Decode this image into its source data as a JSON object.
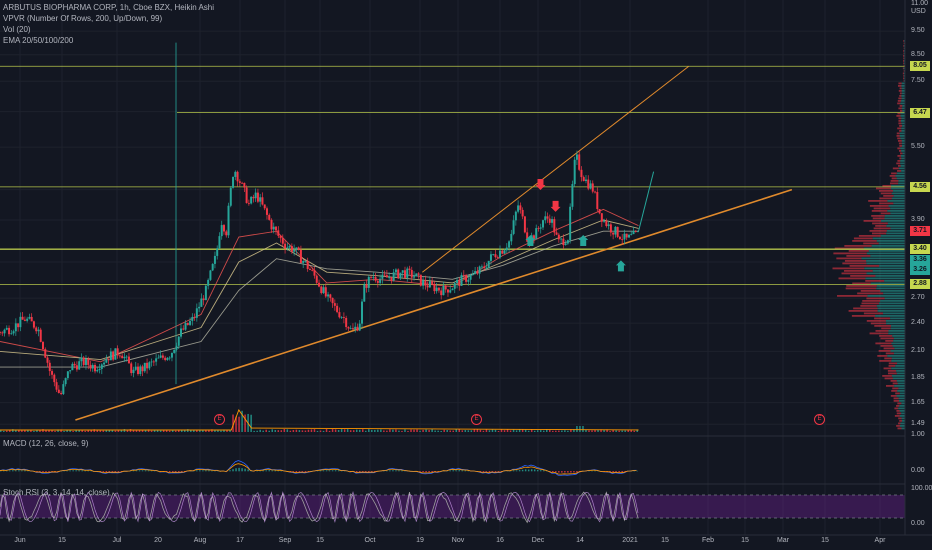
{
  "legend": {
    "title": "ARBUTUS BIOPHARMA CORP, 1h, Cboe BZX, Heikin Ashi",
    "vpvr": "VPVR (Number Of Rows, 200, Up/Down, 99)",
    "vol": "Vol (20)",
    "ema": "EMA 20/50/100/200",
    "macd": "MACD (12, 26, close, 9)",
    "stoch": "Stoch RSI (3, 3, 14, 14, close)"
  },
  "price_axis": {
    "top_label": "11.00",
    "currency": "USD",
    "ticks": [
      "9.50",
      "8.50",
      "7.50",
      "6.50",
      "5.50",
      "4.50",
      "3.90",
      "3.20",
      "2.70",
      "2.40",
      "2.10",
      "1.85",
      "1.65",
      "1.49"
    ],
    "macd_ticks": [
      "1.00",
      "0.00"
    ],
    "stoch_ticks": [
      "100.00",
      "0.00"
    ]
  },
  "price_boxes": [
    {
      "text": "8.05",
      "color": "#c6d74f"
    },
    {
      "text": "6.47",
      "color": "#c6d74f"
    },
    {
      "text": "4.56",
      "color": "#c6d74f"
    },
    {
      "text": "3.71",
      "color": "#f23645"
    },
    {
      "text": "3.40",
      "color": "#c6d74f"
    },
    {
      "text": "3.36",
      "color": "#26a69a"
    },
    {
      "text": "3.26",
      "color": "#26a69a"
    },
    {
      "text": "2.88",
      "color": "#c6d74f"
    }
  ],
  "time_axis": [
    "Jun",
    "15",
    "Jul",
    "20",
    "Aug",
    "17",
    "Sep",
    "15",
    "Oct",
    "19",
    "Nov",
    "16",
    "Dec",
    "14",
    "2021",
    "15",
    "Feb",
    "15",
    "Mar",
    "15",
    "Apr"
  ],
  "earnings_marker": "E",
  "colors": {
    "up": "#26a69a",
    "down": "#f23645",
    "level": "#c6d74f",
    "trend": "#e08a2c",
    "stoch_band": "#7b1fa2",
    "macd_signal": "#ff9800"
  },
  "chart_data": {
    "type": "line",
    "title": "ARBUTUS BIOPHARMA CORP, 1h, Cboe BZX, Heikin Ashi",
    "price": [
      [
        0,
        2.3
      ],
      [
        5,
        2.35
      ],
      [
        10,
        2.45
      ],
      [
        15,
        2.35
      ],
      [
        20,
        1.9
      ],
      [
        24,
        1.7
      ],
      [
        28,
        1.95
      ],
      [
        33,
        2.0
      ],
      [
        38,
        1.95
      ],
      [
        43,
        2.05
      ],
      [
        48,
        2.1
      ],
      [
        53,
        1.9
      ],
      [
        58,
        1.95
      ],
      [
        63,
        2.02
      ],
      [
        68,
        2.08
      ],
      [
        72,
        2.3
      ],
      [
        77,
        2.45
      ],
      [
        82,
        2.8
      ],
      [
        86,
        3.3
      ],
      [
        88,
        3.9
      ],
      [
        90,
        3.7
      ],
      [
        93,
        5.0
      ],
      [
        96,
        4.6
      ],
      [
        99,
        4.2
      ],
      [
        102,
        4.4
      ],
      [
        105,
        4.1
      ],
      [
        108,
        3.8
      ],
      [
        111,
        3.6
      ],
      [
        114,
        3.45
      ],
      [
        117,
        3.4
      ],
      [
        120,
        3.25
      ],
      [
        125,
        3.0
      ],
      [
        130,
        2.7
      ],
      [
        134,
        2.55
      ],
      [
        137,
        2.45
      ],
      [
        140,
        2.3
      ],
      [
        143,
        2.4
      ],
      [
        145,
        2.85
      ],
      [
        148,
        3.0
      ],
      [
        152,
        2.95
      ],
      [
        156,
        3.0
      ],
      [
        160,
        3.05
      ],
      [
        165,
        3.0
      ],
      [
        168,
        2.9
      ],
      [
        172,
        2.85
      ],
      [
        176,
        2.8
      ],
      [
        180,
        2.85
      ],
      [
        184,
        2.95
      ],
      [
        188,
        3.0
      ],
      [
        192,
        3.1
      ],
      [
        196,
        3.3
      ],
      [
        200,
        3.4
      ],
      [
        203,
        3.55
      ],
      [
        206,
        4.2
      ],
      [
        208,
        3.9
      ],
      [
        210,
        3.55
      ],
      [
        213,
        3.65
      ],
      [
        216,
        3.9
      ],
      [
        219,
        3.95
      ],
      [
        222,
        3.5
      ],
      [
        226,
        3.6
      ],
      [
        229,
        5.3
      ],
      [
        231,
        4.9
      ],
      [
        233,
        4.7
      ],
      [
        236,
        4.5
      ],
      [
        238,
        4.1
      ],
      [
        240,
        3.9
      ],
      [
        243,
        3.75
      ],
      [
        246,
        3.65
      ],
      [
        249,
        3.55
      ],
      [
        251,
        3.6
      ],
      [
        254,
        3.65
      ]
    ],
    "x_domain": [
      0,
      360
    ],
    "ylim": [
      1.45,
      11.0
    ],
    "y_scale": "log",
    "horizontal_levels": [
      8.05,
      6.47,
      4.56,
      3.4,
      2.88
    ],
    "trendlines": [
      {
        "from": [
          30,
          1.52
        ],
        "to": [
          315,
          4.5
        ]
      },
      {
        "from": [
          168,
          3.05
        ],
        "to": [
          274,
          8.05
        ]
      },
      {
        "from": [
          254,
          3.7
        ],
        "to": [
          260,
          4.9
        ]
      }
    ],
    "ema_series": [
      {
        "values": [
          [
            0,
            2.2
          ],
          [
            40,
            2.0
          ],
          [
            80,
            2.5
          ],
          [
            95,
            3.6
          ],
          [
            110,
            3.7
          ],
          [
            130,
            2.9
          ],
          [
            150,
            2.95
          ],
          [
            180,
            2.85
          ],
          [
            200,
            3.3
          ],
          [
            220,
            3.7
          ],
          [
            240,
            4.1
          ],
          [
            254,
            3.8
          ]
        ]
      },
      {
        "values": [
          [
            0,
            2.1
          ],
          [
            40,
            2.02
          ],
          [
            80,
            2.35
          ],
          [
            95,
            3.2
          ],
          [
            110,
            3.5
          ],
          [
            130,
            3.05
          ],
          [
            150,
            3.0
          ],
          [
            180,
            2.9
          ],
          [
            200,
            3.2
          ],
          [
            220,
            3.55
          ],
          [
            240,
            3.9
          ],
          [
            254,
            3.75
          ]
        ]
      },
      {
        "values": [
          [
            0,
            1.95
          ],
          [
            40,
            1.95
          ],
          [
            80,
            2.2
          ],
          [
            95,
            2.8
          ],
          [
            110,
            3.25
          ],
          [
            130,
            3.1
          ],
          [
            150,
            3.05
          ],
          [
            180,
            2.95
          ],
          [
            200,
            3.15
          ],
          [
            220,
            3.45
          ],
          [
            240,
            3.7
          ],
          [
            254,
            3.7
          ]
        ]
      }
    ],
    "signals": [
      {
        "x": 215,
        "price": 4.6,
        "dir": "down"
      },
      {
        "x": 221,
        "price": 4.15,
        "dir": "down"
      },
      {
        "x": 211,
        "price": 3.55,
        "dir": "up"
      },
      {
        "x": 232,
        "price": 3.55,
        "dir": "up"
      },
      {
        "x": 247,
        "price": 3.15,
        "dir": "up"
      }
    ],
    "macd_ylim": [
      -1.0,
      1.5
    ],
    "stoch_ylim": [
      0,
      100
    ]
  }
}
